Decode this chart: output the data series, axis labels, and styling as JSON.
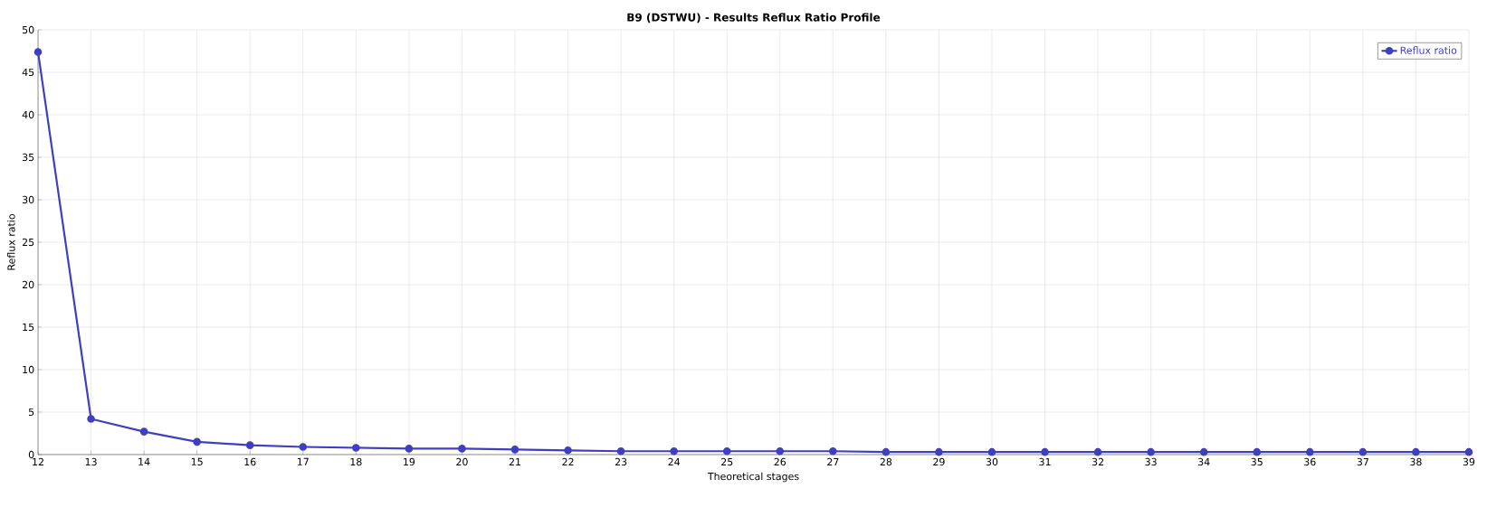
{
  "chart_data": {
    "type": "line",
    "title": "B9 (DSTWU) - Results Reflux Ratio Profile",
    "xlabel": "Theoretical stages",
    "ylabel": "Reflux ratio",
    "x": [
      12,
      13,
      14,
      15,
      16,
      17,
      18,
      19,
      20,
      21,
      22,
      23,
      24,
      25,
      26,
      27,
      28,
      29,
      30,
      31,
      32,
      33,
      34,
      35,
      36,
      37,
      38,
      39
    ],
    "series": [
      {
        "name": "Reflux ratio",
        "color": "#3f3fbf",
        "values": [
          47.4,
          4.2,
          2.7,
          1.5,
          1.1,
          0.9,
          0.8,
          0.7,
          0.7,
          0.6,
          0.5,
          0.4,
          0.4,
          0.4,
          0.4,
          0.4,
          0.3,
          0.3,
          0.3,
          0.3,
          0.3,
          0.3,
          0.3,
          0.3,
          0.3,
          0.3,
          0.3,
          0.3
        ]
      }
    ],
    "xlim": [
      12,
      39
    ],
    "ylim": [
      0,
      50
    ],
    "xticks": [
      12,
      13,
      14,
      15,
      16,
      17,
      18,
      19,
      20,
      21,
      22,
      23,
      24,
      25,
      26,
      27,
      28,
      29,
      30,
      31,
      32,
      33,
      34,
      35,
      36,
      37,
      38,
      39
    ],
    "yticks": [
      0,
      5,
      10,
      15,
      20,
      25,
      30,
      35,
      40,
      45,
      50
    ],
    "grid": true,
    "legend": "top right",
    "marker": "circle",
    "line_style": "solid"
  }
}
